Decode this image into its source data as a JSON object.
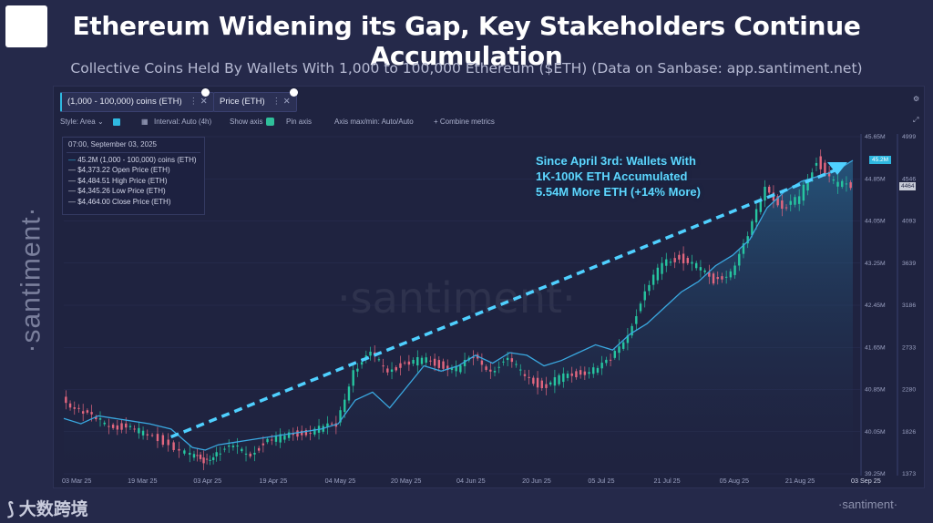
{
  "title": "Ethereum Widening its Gap, Key Stakeholders Continue Accumulation",
  "subtitle": "Collective Coins Held By Wallets With 1,000 to 100,000 Ethereum ($ETH) (Data on Sanbase: app.santiment.net)",
  "tabs": [
    {
      "label": "(1,000 - 100,000) coins (ETH)"
    },
    {
      "label": "Price (ETH)"
    }
  ],
  "controls": {
    "style": "Style: Area",
    "interval": "Interval: Auto (4h)",
    "show_axis": "Show axis",
    "pin_axis": "Pin axis",
    "axis_max_min": "Axis max/min: Auto/Auto",
    "combine": "+ Combine metrics"
  },
  "legend": {
    "date": "07:00, September 03, 2025",
    "rows": [
      {
        "value": "45.2M",
        "label": "(1,000 - 100,000) coins (ETH)"
      },
      {
        "value": "$4,373.22",
        "label": "Open Price (ETH)"
      },
      {
        "value": "$4,484.51",
        "label": "High Price (ETH)"
      },
      {
        "value": "$4,345.26",
        "label": "Low Price (ETH)"
      },
      {
        "value": "$4,464.00",
        "label": "Close Price (ETH)"
      }
    ]
  },
  "annotation": {
    "line1": "Since April 3rd: Wallets With",
    "line2": "1K-100K ETH Accumulated",
    "line3": "5.54M More ETH (+14% More)"
  },
  "brand": {
    "vertical": "·santiment·",
    "watermark": "·santiment·",
    "bottom": "·santiment·",
    "cn": "大数跨境"
  },
  "colors": {
    "background": "#25294a",
    "holdings_line": "#3aa8e0",
    "trend_dashed": "#4fd0ff",
    "candle_up": "#26c6a0",
    "candle_down": "#e3677f"
  },
  "chart_data": {
    "type": "line",
    "title": "Collective Coins Held By Wallets With 1,000 to 100,000 Ethereum ($ETH)",
    "xlabel": "",
    "ylabel": "",
    "x_ticks": [
      "03 Mar 25",
      "19 Mar 25",
      "03 Apr 25",
      "19 Apr 25",
      "04 May 25",
      "20 May 25",
      "04 Jun 25",
      "20 Jun 25",
      "05 Jul 25",
      "21 Jul 25",
      "05 Aug 25",
      "21 Aug 25",
      "03 Sep 25"
    ],
    "y_right_holdings_ticks": [
      "45.65M",
      "44.85M",
      "44.05M",
      "43.25M",
      "42.45M",
      "41.65M",
      "40.85M",
      "40.05M",
      "39.25M"
    ],
    "y_right_price_ticks": [
      "4999",
      "4546",
      "4093",
      "3639",
      "3186",
      "2733",
      "2280",
      "1826",
      "1373"
    ],
    "holdings_ylim": [
      39.25,
      45.65
    ],
    "price_ylim": [
      1373,
      4999
    ],
    "holdings_last_label": "45.2M",
    "price_last_label": "4464",
    "series": [
      {
        "name": "(1,000 - 100,000) coins (ETH)",
        "unit": "M ETH",
        "x": [
          0,
          4,
          8,
          12,
          16,
          20,
          25,
          30,
          33,
          36,
          40,
          44,
          48,
          52,
          56,
          60,
          64,
          68,
          72,
          76,
          80,
          84,
          88,
          92,
          96,
          100,
          104,
          108,
          112,
          116,
          120,
          124,
          128,
          132,
          136,
          140,
          144,
          148,
          152,
          156,
          160,
          164,
          168,
          172,
          176,
          180,
          184
        ],
        "values": [
          40.3,
          40.2,
          40.35,
          40.3,
          40.25,
          40.2,
          40.1,
          39.75,
          39.7,
          39.8,
          39.85,
          39.9,
          39.95,
          40.0,
          40.05,
          40.1,
          40.2,
          40.65,
          40.8,
          40.5,
          40.9,
          41.3,
          41.2,
          41.3,
          41.5,
          41.35,
          41.55,
          41.5,
          41.3,
          41.4,
          41.55,
          41.7,
          41.6,
          41.9,
          42.1,
          42.4,
          42.7,
          42.9,
          43.2,
          43.4,
          43.7,
          44.3,
          44.6,
          44.8,
          44.9,
          45.0,
          45.2
        ]
      },
      {
        "name": "Price (ETH)",
        "unit": "USD",
        "x": [
          0,
          4,
          8,
          12,
          16,
          20,
          25,
          30,
          33,
          36,
          40,
          44,
          48,
          52,
          56,
          60,
          64,
          68,
          72,
          76,
          80,
          84,
          88,
          92,
          96,
          100,
          104,
          108,
          112,
          116,
          120,
          124,
          128,
          132,
          136,
          140,
          144,
          148,
          152,
          156,
          160,
          164,
          168,
          172,
          176,
          180,
          184
        ],
        "values": [
          2200,
          2050,
          1950,
          1900,
          1850,
          1800,
          1700,
          1560,
          1520,
          1600,
          1650,
          1600,
          1720,
          1780,
          1820,
          1850,
          1900,
          2500,
          2650,
          2500,
          2550,
          2600,
          2550,
          2500,
          2620,
          2500,
          2580,
          2450,
          2300,
          2400,
          2450,
          2500,
          2580,
          2900,
          3300,
          3650,
          3700,
          3600,
          3450,
          3550,
          3900,
          4500,
          4200,
          4350,
          4750,
          4500,
          4464
        ]
      },
      {
        "name": "Trend (dashed)",
        "x": [
          25,
          181
        ],
        "values": [
          39.95,
          45.05
        ]
      }
    ],
    "dates_index_note": "x is day offset from 03 Mar 25"
  }
}
